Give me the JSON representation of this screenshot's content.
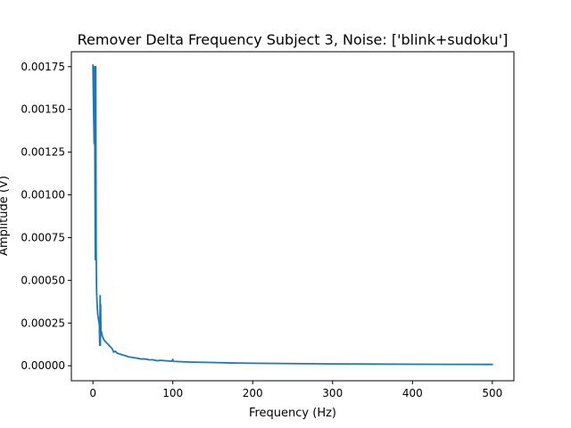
{
  "chart_data": {
    "type": "line",
    "title": "Remover Delta Frequency Subject 3, Noise: ['blink+sudoku']",
    "xlabel": "Frequency (Hz)",
    "ylabel": "Amplitude (V)",
    "xlim": [
      -27,
      527
    ],
    "ylim": [
      -8.75e-05,
      0.0018375
    ],
    "xticks": [
      0,
      100,
      200,
      300,
      400,
      500
    ],
    "xtick_labels": [
      "0",
      "100",
      "200",
      "300",
      "400",
      "500"
    ],
    "yticks": [
      0,
      0.00025,
      0.0005,
      0.00075,
      0.001,
      0.00125,
      0.0015,
      0.00175
    ],
    "ytick_labels": [
      "0.00000",
      "0.00025",
      "0.00050",
      "0.00075",
      "0.00100",
      "0.00125",
      "0.00150",
      "0.00175"
    ],
    "grid": false,
    "series": [
      {
        "color": "#1f77b4",
        "x": [
          0,
          0.5,
          1,
          1.5,
          2,
          2.5,
          3,
          3.5,
          4,
          4.5,
          5,
          5.5,
          6,
          7,
          8,
          8.5,
          9,
          9.3,
          9.6,
          10,
          11,
          12,
          14,
          16,
          18,
          20,
          22,
          24,
          26,
          28,
          30,
          33,
          36,
          40,
          45,
          50,
          55,
          60,
          65,
          70,
          75,
          80,
          85,
          90,
          95,
          99,
          100,
          100.5,
          101,
          110,
          120,
          140,
          160,
          180,
          200,
          250,
          300,
          350,
          400,
          450,
          500
        ],
        "y": [
          0.00176,
          0.0016,
          0.00145,
          0.0013,
          0.00175,
          0.0011,
          0.00062,
          0.00175,
          0.0007,
          0.00045,
          0.00038,
          0.00034,
          0.0003,
          0.00027,
          0.00024,
          0.00012,
          0.00041,
          0.00012,
          0.00036,
          0.00021,
          0.00019,
          0.00017,
          0.00015,
          0.00014,
          0.00013,
          0.00012,
          0.00011,
          0.0001,
          8e-05,
          8.5e-05,
          7.5e-05,
          7e-05,
          6.5e-05,
          6e-05,
          5.2e-05,
          4.8e-05,
          4.5e-05,
          4e-05,
          4e-05,
          3.5e-05,
          3.5e-05,
          3e-05,
          3.2e-05,
          3e-05,
          2.8e-05,
          2.7e-05,
          3.8e-05,
          2.7e-05,
          2.6e-05,
          2.4e-05,
          2.2e-05,
          2e-05,
          1.8e-05,
          1.6e-05,
          1.5e-05,
          1.3e-05,
          1.1e-05,
          1e-05,
          9e-06,
          8.5e-06,
          8e-06
        ]
      }
    ]
  }
}
